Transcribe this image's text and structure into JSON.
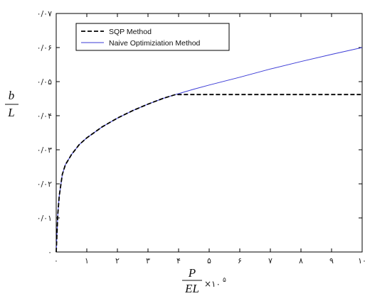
{
  "chart_data": {
    "type": "line",
    "xlim": [
      0,
      10
    ],
    "ylim": [
      0,
      0.07
    ],
    "x_ticks": [
      0,
      1,
      2,
      3,
      4,
      5,
      6,
      7,
      8,
      9,
      10
    ],
    "x_tick_labels": [
      "۰",
      "۱",
      "۲",
      "۳",
      "۴",
      "۵",
      "۶",
      "۷",
      "۸",
      "۹",
      "۱۰"
    ],
    "y_ticks": [
      0,
      0.01,
      0.02,
      0.03,
      0.04,
      0.05,
      0.06,
      0.07
    ],
    "y_tick_labels": [
      "۰",
      "۰/۰۱",
      "۰/۰۲",
      "۰/۰۳",
      "۰/۰۴",
      "۰/۰۵",
      "۰/۰۶",
      "۰/۰۷"
    ],
    "xlabel": {
      "numerator": "P",
      "denominator": "EL",
      "multiplier": "×۱۰",
      "exponent": "۵"
    },
    "ylabel": {
      "numerator": "b",
      "denominator": "L"
    },
    "grid": false,
    "legend_position": "top-left",
    "series": [
      {
        "name": "SQP Method",
        "color": "#000000",
        "style": "dashed",
        "x": [
          0,
          0.05,
          0.1,
          0.2,
          0.3,
          0.5,
          0.75,
          1.0,
          1.5,
          2.0,
          2.5,
          3.0,
          3.5,
          3.9,
          4.5,
          5.0,
          6.0,
          7.0,
          8.0,
          9.0,
          10.0
        ],
        "y": [
          0.0,
          0.011,
          0.0165,
          0.0228,
          0.0256,
          0.0286,
          0.0315,
          0.0335,
          0.0367,
          0.0393,
          0.0415,
          0.0434,
          0.0451,
          0.0462,
          0.0462,
          0.0462,
          0.0462,
          0.0462,
          0.0462,
          0.0462,
          0.0462
        ]
      },
      {
        "name": "Naive Optimiziation Method",
        "color": "#3b3bd6",
        "style": "solid",
        "x": [
          0,
          0.05,
          0.1,
          0.2,
          0.3,
          0.5,
          0.75,
          1.0,
          1.5,
          2.0,
          2.5,
          3.0,
          3.5,
          3.9,
          4.5,
          5.0,
          6.0,
          7.0,
          8.0,
          9.0,
          10.0
        ],
        "y": [
          0.0,
          0.011,
          0.0165,
          0.0228,
          0.0256,
          0.0286,
          0.0315,
          0.0335,
          0.0367,
          0.0393,
          0.0415,
          0.0434,
          0.0451,
          0.0462,
          0.0478,
          0.049,
          0.0513,
          0.0537,
          0.0559,
          0.058,
          0.06
        ]
      }
    ]
  }
}
